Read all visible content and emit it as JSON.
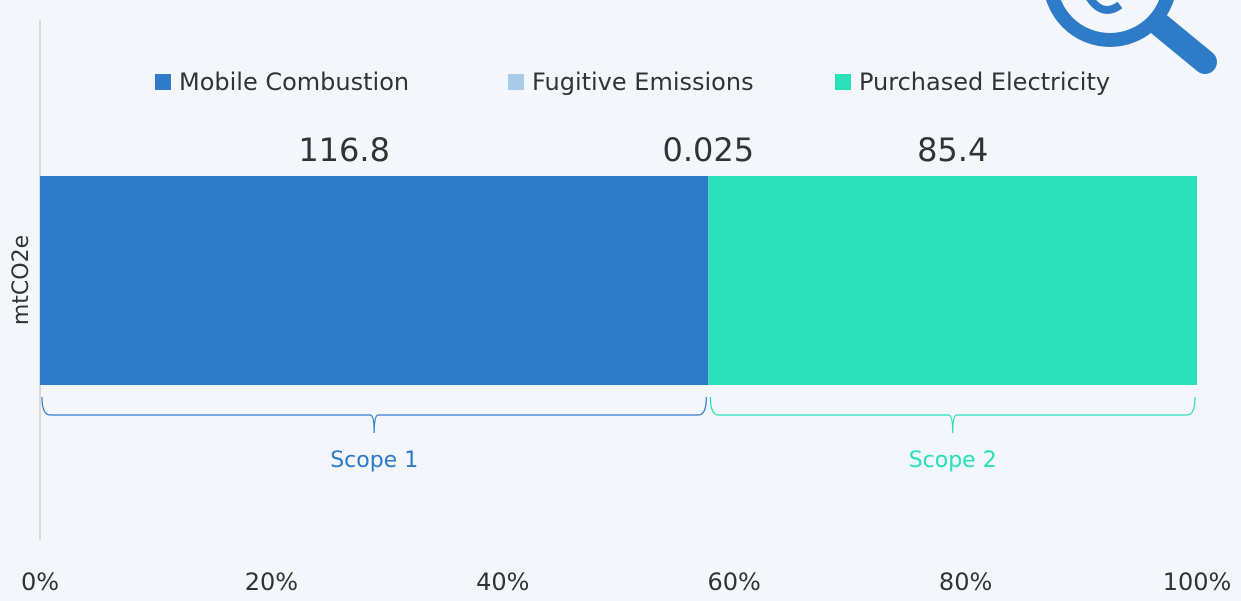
{
  "chart_data": {
    "type": "stacked_bar_100",
    "orientation": "horizontal",
    "y_label": "mtCO2e",
    "series": [
      {
        "name": "Mobile Combustion",
        "color": "#2e7bc8",
        "values": [
          116.8
        ]
      },
      {
        "name": "Fugitive Emissions",
        "color": "#a9cbea",
        "values": [
          0.025
        ]
      },
      {
        "name": "Purchased Electricity",
        "color": "#29e0b9",
        "values": [
          85.4
        ]
      }
    ],
    "groups": [
      {
        "name": "Scope 1",
        "color": "#2e7bc8",
        "series": [
          0,
          1
        ]
      },
      {
        "name": "Scope 2",
        "color": "#29e0b9",
        "series": [
          2
        ]
      }
    ],
    "xlim": [
      0,
      100
    ],
    "xticks": [
      {
        "value": 0,
        "label": "0%"
      },
      {
        "value": 20,
        "label": "20%"
      },
      {
        "value": 40,
        "label": "40%"
      },
      {
        "value": 60,
        "label": "60%"
      },
      {
        "value": 80,
        "label": "80%"
      },
      {
        "value": 100,
        "label": "100%"
      }
    ],
    "legend": "top"
  }
}
